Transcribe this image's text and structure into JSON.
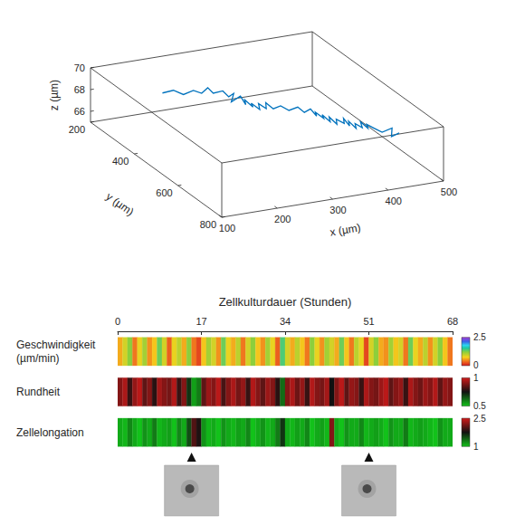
{
  "chart_data": [
    {
      "type": "line3d",
      "x": [
        210,
        225,
        240,
        252,
        265,
        272,
        280,
        292,
        300,
        305,
        298,
        312,
        320,
        315,
        328,
        322,
        335,
        330,
        342,
        338,
        350,
        360,
        372,
        385,
        395,
        402,
        410,
        405,
        418,
        412,
        425,
        420,
        432,
        428,
        440,
        436,
        445,
        440,
        452,
        447,
        458,
        452,
        463,
        458,
        470,
        478,
        490,
        485,
        495
      ],
      "y": [
        250,
        262,
        270,
        285,
        290,
        300,
        305,
        318,
        325,
        335,
        342,
        348,
        352,
        360,
        365,
        372,
        378,
        385,
        390,
        398,
        402,
        410,
        418,
        425,
        430,
        440,
        448,
        455,
        460,
        468,
        472,
        480,
        485,
        492,
        498,
        505,
        510,
        518,
        522,
        530,
        535,
        542,
        548,
        555,
        560,
        575,
        590,
        600,
        610
      ],
      "z": [
        67.5,
        67.8,
        67.4,
        67.9,
        67.6,
        68.2,
        67.7,
        68.0,
        67.5,
        67.9,
        67.3,
        67.8,
        67.0,
        67.6,
        66.9,
        67.4,
        66.8,
        67.5,
        67.0,
        67.7,
        67.1,
        67.4,
        67.0,
        67.3,
        66.8,
        67.2,
        66.6,
        67.1,
        66.5,
        67.0,
        66.3,
        66.9,
        66.2,
        66.8,
        66.4,
        67.0,
        66.3,
        66.9,
        66.2,
        66.8,
        66.4,
        67.1,
        66.5,
        67.0,
        66.6,
        66.4,
        66.9,
        66.3,
        66.7
      ],
      "color": "#0072bd",
      "xlabel": "x (µm)",
      "ylabel": "y (µm)",
      "zlabel": "z (µm)",
      "xlim": [
        100,
        500
      ],
      "xticks": [
        100,
        200,
        300,
        400,
        500
      ],
      "ylim": [
        200,
        800
      ],
      "yticks": [
        200,
        400,
        600,
        800
      ],
      "zlim": [
        65,
        70
      ],
      "zticks": [
        66,
        68,
        70
      ]
    },
    {
      "type": "strips",
      "title": "Zellkulturdauer (Stunden)",
      "x": [
        0,
        1,
        2,
        3,
        4,
        5,
        6,
        7,
        8,
        9,
        10,
        11,
        12,
        13,
        14,
        15,
        16,
        17,
        18,
        19,
        20,
        21,
        22,
        23,
        24,
        25,
        26,
        27,
        28,
        29,
        30,
        31,
        32,
        33,
        34,
        35,
        36,
        37,
        38,
        39,
        40,
        41,
        42,
        43,
        44,
        45,
        46,
        47,
        48,
        49,
        50,
        51,
        52,
        53,
        54,
        55,
        56,
        57,
        58,
        59,
        60,
        61,
        62,
        63,
        64,
        65,
        66,
        67
      ],
      "xlim": [
        0,
        68
      ],
      "xticks": [
        0,
        17,
        34,
        51,
        68
      ],
      "series": [
        {
          "name": "Geschwindigkeit (µm/min)",
          "values": [
            0.6,
            0.9,
            1.2,
            0.4,
            0.8,
            1.1,
            0.5,
            0.7,
            1.3,
            0.9,
            0.3,
            0.8,
            1.0,
            0.6,
            1.2,
            0.4,
            0.2,
            0.7,
            1.1,
            0.9,
            0.5,
            1.3,
            0.8,
            0.6,
            1.0,
            0.4,
            0.9,
            1.2,
            0.7,
            0.5,
            1.1,
            0.8,
            0.3,
            1.4,
            0.9,
            0.6,
            1.0,
            0.7,
            0.4,
            1.2,
            0.8,
            0.5,
            1.1,
            0.9,
            0.6,
            1.3,
            0.7,
            0.4,
            1.0,
            0.8,
            0.2,
            0.9,
            1.2,
            0.6,
            0.5,
            1.1,
            0.7,
            0.9,
            0.4,
            1.3,
            0.8,
            0.6,
            1.0,
            0.5,
            0.9,
            1.2,
            0.7,
            0.4
          ],
          "colorbar": {
            "range": [
              0,
              2.5
            ],
            "ticks": [
              0,
              2.5
            ]
          }
        },
        {
          "name": "Rundheit",
          "values": [
            0.9,
            0.95,
            0.8,
            0.92,
            0.97,
            0.85,
            0.9,
            0.78,
            0.94,
            0.9,
            0.88,
            0.96,
            0.8,
            0.9,
            0.7,
            0.55,
            0.6,
            0.85,
            0.93,
            0.9,
            0.97,
            0.82,
            0.9,
            0.95,
            0.88,
            0.92,
            0.8,
            0.96,
            0.9,
            0.85,
            0.93,
            0.9,
            0.78,
            0.62,
            0.9,
            0.95,
            0.87,
            0.92,
            0.8,
            0.96,
            0.9,
            0.88,
            0.94,
            0.75,
            0.9,
            0.97,
            0.85,
            0.92,
            0.9,
            0.8,
            0.95,
            0.9,
            0.88,
            0.93,
            0.97,
            0.85,
            0.9,
            0.92,
            0.8,
            0.95,
            0.9,
            0.87,
            0.93,
            0.9,
            0.96,
            0.85,
            0.92,
            0.9
          ],
          "colorbar": {
            "range": [
              0.5,
              1
            ],
            "ticks": [
              0.5,
              1
            ]
          }
        },
        {
          "name": "Zellelongation",
          "values": [
            1.1,
            1.05,
            1.25,
            1.1,
            1.0,
            1.2,
            1.1,
            1.3,
            1.05,
            1.1,
            1.15,
            1.0,
            1.25,
            1.1,
            1.5,
            2.0,
            1.8,
            1.2,
            1.05,
            1.1,
            1.0,
            1.2,
            1.1,
            1.05,
            1.15,
            1.1,
            1.25,
            1.0,
            1.1,
            1.2,
            1.05,
            1.1,
            1.3,
            1.6,
            1.1,
            1.05,
            1.15,
            1.1,
            1.25,
            1.0,
            1.1,
            1.15,
            1.05,
            2.2,
            1.1,
            1.0,
            1.2,
            1.1,
            1.1,
            1.25,
            1.05,
            1.1,
            1.15,
            1.1,
            1.0,
            1.2,
            1.1,
            1.1,
            1.3,
            1.05,
            1.1,
            1.15,
            1.1,
            1.05,
            1.0,
            1.2,
            1.1,
            1.1
          ],
          "colorbar": {
            "range": [
              1,
              2.5
            ],
            "ticks": [
              1,
              2.5
            ]
          }
        }
      ],
      "snapshots": [
        15,
        51
      ]
    }
  ]
}
